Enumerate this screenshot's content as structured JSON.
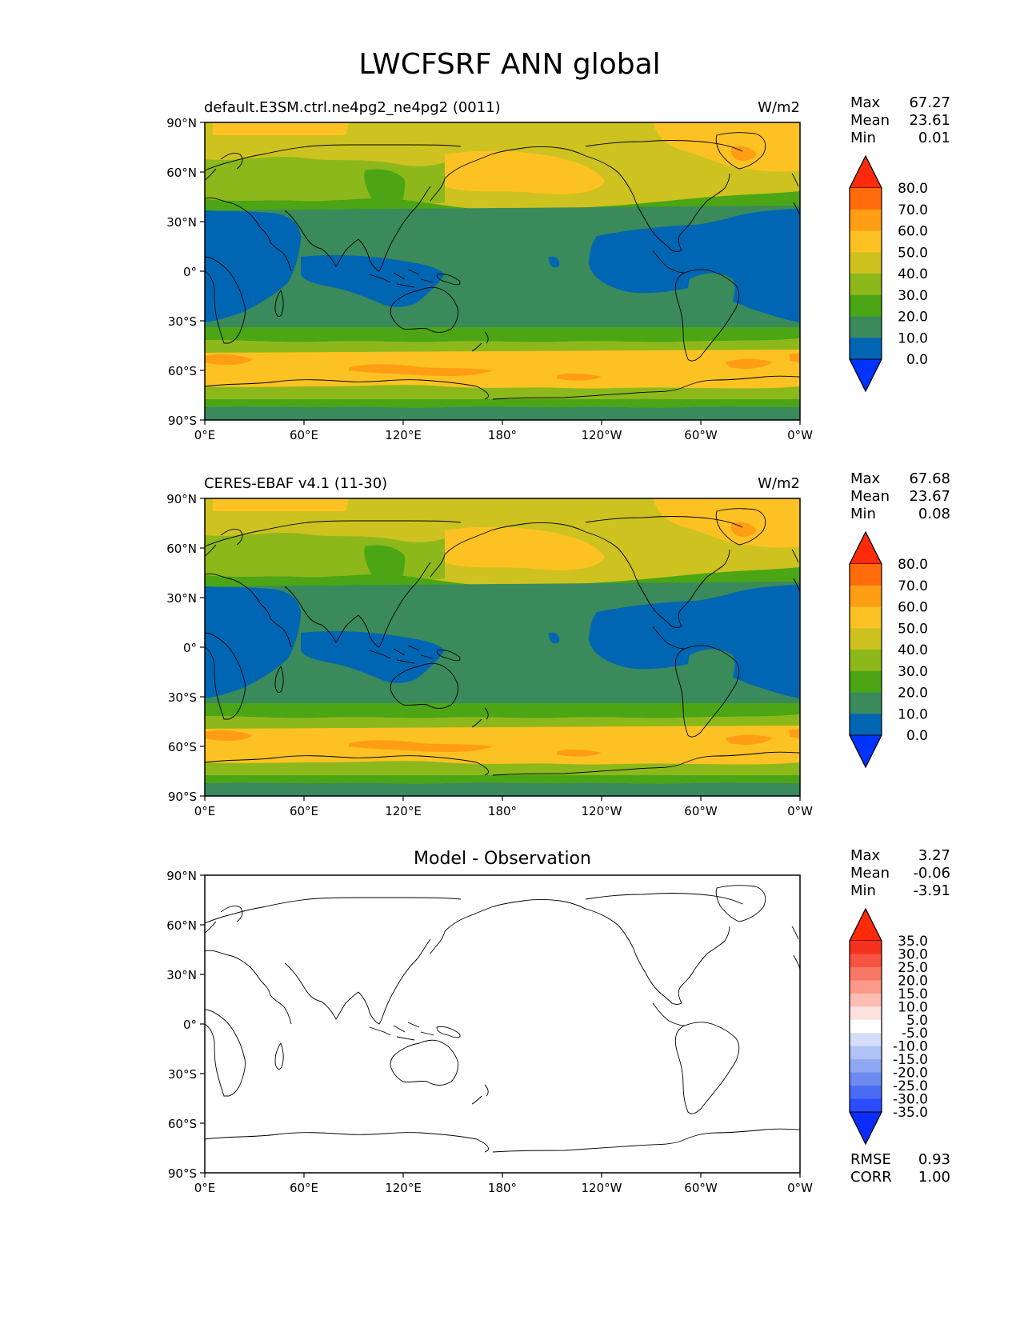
{
  "figure": {
    "title": "LWCFSRF ANN global"
  },
  "panels": [
    {
      "id": "test",
      "title_left": "default.E3SM.ctrl.ne4pg2_ne4pg2 (0011)",
      "title_right": "W/m2",
      "title_center": "",
      "stats": [
        {
          "label": "Max",
          "value": "67.27"
        },
        {
          "label": "Mean",
          "value": "23.61"
        },
        {
          "label": "Min",
          "value": "0.01"
        }
      ],
      "colorbar": {
        "colors": [
          "#0033ff",
          "#0066b3",
          "#3a8a5c",
          "#4ca514",
          "#8db81b",
          "#cdc21f",
          "#fcc223",
          "#ff9d14",
          "#ff6a0a",
          "#ff2a0a"
        ],
        "labels": [
          "0.0",
          "10.0",
          "20.0",
          "30.0",
          "40.0",
          "50.0",
          "60.0",
          "70.0",
          "80.0"
        ]
      }
    },
    {
      "id": "reference",
      "title_left": "CERES-EBAF v4.1 (11-30)",
      "title_right": "W/m2",
      "title_center": "",
      "stats": [
        {
          "label": "Max",
          "value": "67.68"
        },
        {
          "label": "Mean",
          "value": "23.67"
        },
        {
          "label": "Min",
          "value": "0.08"
        }
      ],
      "colorbar": {
        "colors": [
          "#0033ff",
          "#0066b3",
          "#3a8a5c",
          "#4ca514",
          "#8db81b",
          "#cdc21f",
          "#fcc223",
          "#ff9d14",
          "#ff6a0a",
          "#ff2a0a"
        ],
        "labels": [
          "0.0",
          "10.0",
          "20.0",
          "30.0",
          "40.0",
          "50.0",
          "60.0",
          "70.0",
          "80.0"
        ]
      }
    },
    {
      "id": "difference",
      "title_left": "",
      "title_right": "",
      "title_center": "Model - Observation",
      "stats": [
        {
          "label": "Max",
          "value": "3.27"
        },
        {
          "label": "Mean",
          "value": "-0.06"
        },
        {
          "label": "Min",
          "value": "-3.91"
        }
      ],
      "extra_stats": [
        {
          "label": "RMSE",
          "value": "0.93"
        },
        {
          "label": "CORR",
          "value": "1.00"
        }
      ],
      "colorbar": {
        "colors": [
          "#0a2cff",
          "#2a4cff",
          "#4a6cf5",
          "#6c8af0",
          "#8ea7f2",
          "#b0c2f6",
          "#d4def9",
          "#ffffff",
          "#fde1dc",
          "#fcbdb2",
          "#fa998a",
          "#f77764",
          "#f65442",
          "#f4321f",
          "#ff2a0a"
        ],
        "labels": [
          "-35.0",
          "-30.0",
          "-25.0",
          "-20.0",
          "-15.0",
          "-10.0",
          "-5.0",
          "5.0",
          "10.0",
          "15.0",
          "20.0",
          "25.0",
          "30.0",
          "35.0"
        ]
      }
    }
  ],
  "axes": {
    "lat_ticks": [
      "90°N",
      "60°N",
      "30°N",
      "0°",
      "30°S",
      "60°S",
      "90°S"
    ],
    "lon_ticks": [
      "0°E",
      "60°E",
      "120°E",
      "180°",
      "120°W",
      "60°W",
      "0°W"
    ]
  },
  "map_data": {
    "projection": "PlateCarree",
    "central_longitude": 180,
    "extent": {
      "lon": [
        0,
        360
      ],
      "lat": [
        -90,
        90
      ]
    },
    "field_description_levels": [
      0,
      10,
      20,
      30,
      40,
      50,
      60,
      70,
      80
    ]
  }
}
